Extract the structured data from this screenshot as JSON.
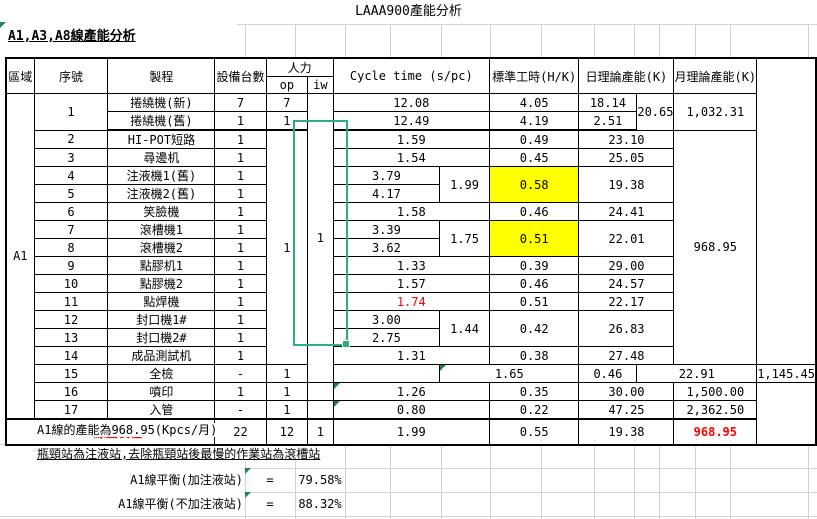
{
  "title": "LAAA900產能分析",
  "subtitle": "A1,A3,A8線產能分析",
  "colors": {
    "highlight_yellow": "#FFFF00",
    "alert_red": "#FF0000",
    "selection_green": "#2DAF7D",
    "formula_flag_green": "#1E8449",
    "gridline": "#ccd4e0"
  },
  "header": {
    "area": "區域",
    "seq": "序號",
    "process": "製程",
    "machines": "設備台數",
    "manpower": "人力",
    "op": "op",
    "iw": "iw",
    "cycle": "Cycle time (s/pc)",
    "std": "標準工時(H/K)",
    "daily": "日理論產能(K)",
    "monthly": "月理論產能(K)"
  },
  "area_label": "A1",
  "iw_merged": "1",
  "op_merged": "1",
  "rows": {
    "r1a": {
      "seq": "1",
      "process": "捲繞機(新)",
      "machines": "7",
      "op": "7",
      "cycle": "12.08",
      "std": "4.05",
      "daily": "18.14",
      "daily_sub": "20.65",
      "monthly": "1,032.31"
    },
    "r1b": {
      "process": "捲繞機(舊)",
      "machines": "1",
      "op": "1",
      "cycle": "12.49",
      "std": "4.19",
      "daily": "2.51"
    },
    "r2": {
      "seq": "2",
      "process": "HI-POT短路",
      "machines": "1",
      "cycle": "1.59",
      "std": "0.49",
      "daily": "23.10",
      "monthly": "968.95"
    },
    "r3": {
      "seq": "3",
      "process": "尋邊机",
      "machines": "1",
      "cycle": "1.54",
      "std": "0.45",
      "daily": "25.05"
    },
    "r4": {
      "seq": "4",
      "process": "注液機1(舊)",
      "machines": "1",
      "cycle": "3.79",
      "cycle_avg": "1.99",
      "std": "0.58",
      "daily": "19.38"
    },
    "r5": {
      "seq": "5",
      "process": "注液機2(舊)",
      "machines": "1",
      "cycle": "4.17"
    },
    "r6": {
      "seq": "6",
      "process": "笑臉機",
      "machines": "1",
      "cycle": "1.58",
      "std": "0.46",
      "daily": "24.41"
    },
    "r7": {
      "seq": "7",
      "process": "滾槽機1",
      "machines": "1",
      "cycle": "3.39",
      "cycle_avg": "1.75",
      "std": "0.51",
      "daily": "22.01"
    },
    "r8": {
      "seq": "8",
      "process": "滾槽機2",
      "machines": "1",
      "cycle": "3.62"
    },
    "r9": {
      "seq": "9",
      "process": "點膠机1",
      "machines": "1",
      "cycle": "1.33",
      "std": "0.39",
      "daily": "29.00"
    },
    "r10": {
      "seq": "10",
      "process": "點膠機2",
      "machines": "1",
      "cycle": "1.57",
      "std": "0.46",
      "daily": "24.57"
    },
    "r11": {
      "seq": "11",
      "process": "點焊機",
      "machines": "1",
      "cycle": "1.74",
      "std": "0.51",
      "daily": "22.17"
    },
    "r12": {
      "seq": "12",
      "process": "封口機1#",
      "machines": "1",
      "cycle": "3.00",
      "cycle_avg": "1.44",
      "std": "0.42",
      "daily": "26.83"
    },
    "r13": {
      "seq": "13",
      "process": "封口機2#",
      "machines": "1",
      "cycle": "2.75"
    },
    "r14": {
      "seq": "14",
      "process": "成品測試机",
      "machines": "1",
      "cycle": "1.31",
      "std": "0.38",
      "daily": "27.48"
    },
    "r15": {
      "seq": "15",
      "process": "全檢",
      "machines": "-",
      "op": "1",
      "cycle": "1.65",
      "std": "0.46",
      "daily": "22.91",
      "monthly": "1,145.45"
    },
    "r16": {
      "seq": "16",
      "process": "噴印",
      "machines": "1",
      "op": "1",
      "cycle": "1.26",
      "std": "0.35",
      "daily": "30.00",
      "monthly": "1,500.00"
    },
    "r17": {
      "seq": "17",
      "process": "入管",
      "machines": "-",
      "op": "1",
      "cycle": "0.80",
      "std": "0.22",
      "daily": "47.25",
      "monthly": "2,362.50"
    }
  },
  "summary": {
    "label": "A1線全製程",
    "machines": "22",
    "op": "12",
    "iw": "1",
    "cycle": "1.99",
    "std": "0.55",
    "daily": "19.38",
    "monthly": "968.95"
  },
  "notes": {
    "capacity": "A1線的產能為968.95(Kpcs/月)",
    "bottleneck": "瓶頸站為注液站,去除瓶頸站後最慢的作業站為滾槽站",
    "balance_with_label": "A1線平衡(加注液站)",
    "balance_with_eq": "=",
    "balance_with_value": "79.58%",
    "balance_without_label": "A1線平衡(不加注液站)",
    "balance_without_eq": "=",
    "balance_without_value": "88.32%"
  }
}
